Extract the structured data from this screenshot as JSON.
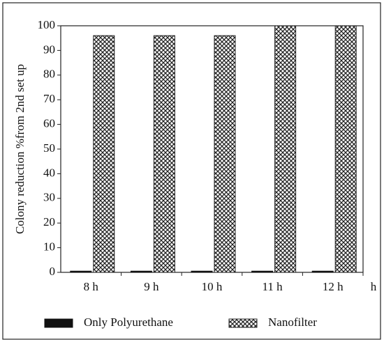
{
  "chart_data": {
    "type": "bar",
    "y_label": "Colony reduction %from 2nd set up",
    "x_label": "h",
    "categories": [
      "8 h",
      "9 h",
      "10 h",
      "11 h",
      "12 h"
    ],
    "series": [
      {
        "name": "Only Polyurethane",
        "color": "#111111",
        "pattern": "solid",
        "values": [
          0.5,
          0.5,
          0.5,
          0.5,
          0.5
        ]
      },
      {
        "name": "Nanofilter",
        "color": "#222222",
        "pattern": "crosshatch",
        "values": [
          96,
          96,
          96,
          100,
          100
        ]
      }
    ],
    "ylim": [
      0,
      100
    ],
    "yticks": [
      0,
      10,
      20,
      30,
      40,
      50,
      60,
      70,
      80,
      90,
      100
    ],
    "legend": "bottom"
  }
}
